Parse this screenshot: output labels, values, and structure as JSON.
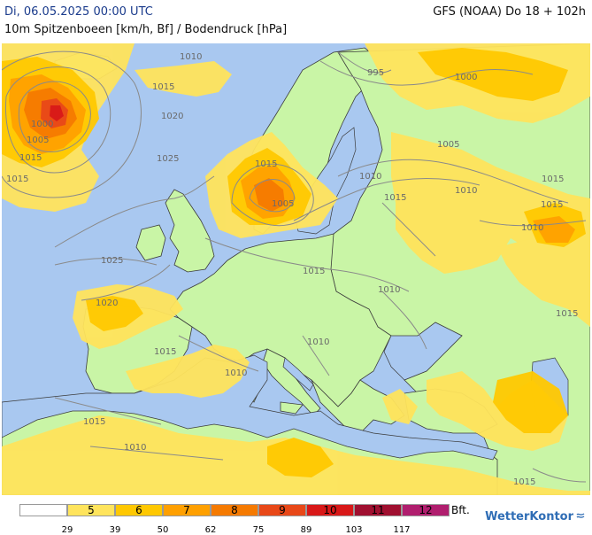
{
  "header": {
    "valid_time": "Di, 06.05.2025 00:00 UTC",
    "parameter": "10m Spitzenboeen [km/h, Bf] / Bodendruck [hPa]",
    "model_run": "GFS (NOAA) Do 18 + 102h"
  },
  "map": {
    "isobar_labels": [
      "1010",
      "1015",
      "1020",
      "1000",
      "1005",
      "1015",
      "1015",
      "1025",
      "1015",
      "995",
      "1000",
      "1005",
      "1010",
      "1015",
      "1010",
      "1015",
      "1005",
      "1025",
      "1015",
      "1010",
      "1020",
      "1015",
      "1010",
      "1010",
      "1010",
      "1015",
      "1010",
      "1015",
      "1020",
      "1015",
      "1010",
      "1015",
      "1015"
    ]
  },
  "legend": {
    "bft_labels": [
      "",
      "5",
      "6",
      "7",
      "8",
      "9",
      "10",
      "11",
      "12"
    ],
    "kmh_thresholds": [
      "29",
      "39",
      "50",
      "62",
      "75",
      "89",
      "103",
      "117"
    ],
    "unit": "Bft.",
    "colors": [
      "#ffffff",
      "#ffe45c",
      "#ffc800",
      "#ffa000",
      "#f57a00",
      "#e84818",
      "#d81818",
      "#a01030",
      "#b01e6e"
    ]
  },
  "brand": {
    "name": "WetterKontor"
  }
}
